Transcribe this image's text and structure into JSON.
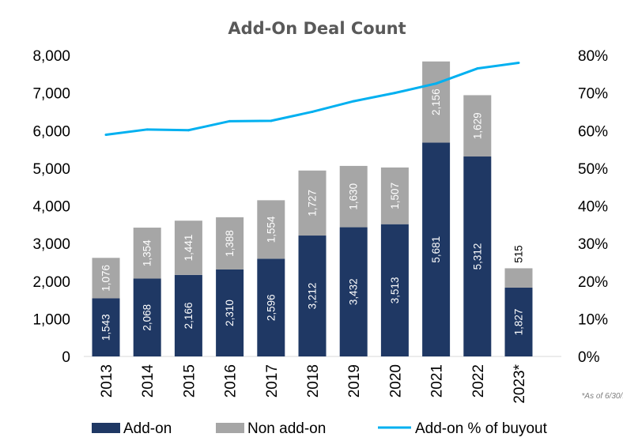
{
  "chart_data": {
    "type": "bar",
    "stacked": true,
    "title": "Add-On Deal Count",
    "categories": [
      "2013",
      "2014",
      "2015",
      "2016",
      "2017",
      "2018",
      "2019",
      "2020",
      "2021",
      "2022",
      "2023*"
    ],
    "series": [
      {
        "name": "Add-on",
        "kind": "bar",
        "axis": "left",
        "color": "#1f3864",
        "values": [
          1543,
          2068,
          2166,
          2310,
          2596,
          3212,
          3432,
          3513,
          5681,
          5312,
          1827
        ],
        "labels": [
          "1,543",
          "2,068",
          "2,166",
          "2,310",
          "2,596",
          "3,212",
          "3,432",
          "3,513",
          "5,681",
          "5,312",
          "1,827"
        ]
      },
      {
        "name": "Non add-on",
        "kind": "bar",
        "axis": "left",
        "color": "#a6a6a6",
        "values": [
          1076,
          1354,
          1441,
          1388,
          1554,
          1727,
          1630,
          1507,
          2156,
          1629,
          515
        ],
        "labels": [
          "1,076",
          "1,354",
          "1,441",
          "1,388",
          "1,554",
          "1,727",
          "1,630",
          "1,507",
          "2,156",
          "1,629",
          "515"
        ]
      },
      {
        "name": "Add-on % of buyout",
        "kind": "line",
        "axis": "right",
        "color": "#00b0f0",
        "values": [
          58.9,
          60.3,
          60.1,
          62.5,
          62.6,
          65.0,
          67.8,
          70.0,
          72.5,
          76.5,
          78.0
        ]
      }
    ],
    "y_left": {
      "min": 0,
      "max": 8000,
      "ticks": [
        "0",
        "1,000",
        "2,000",
        "3,000",
        "4,000",
        "5,000",
        "6,000",
        "7,000",
        "8,000"
      ]
    },
    "y_right": {
      "min": 0,
      "max": 80,
      "ticks": [
        "0%",
        "10%",
        "20%",
        "30%",
        "40%",
        "50%",
        "60%",
        "70%",
        "80%"
      ]
    },
    "grid": false,
    "legend_position": "bottom",
    "note": "*As of 6/30/."
  }
}
